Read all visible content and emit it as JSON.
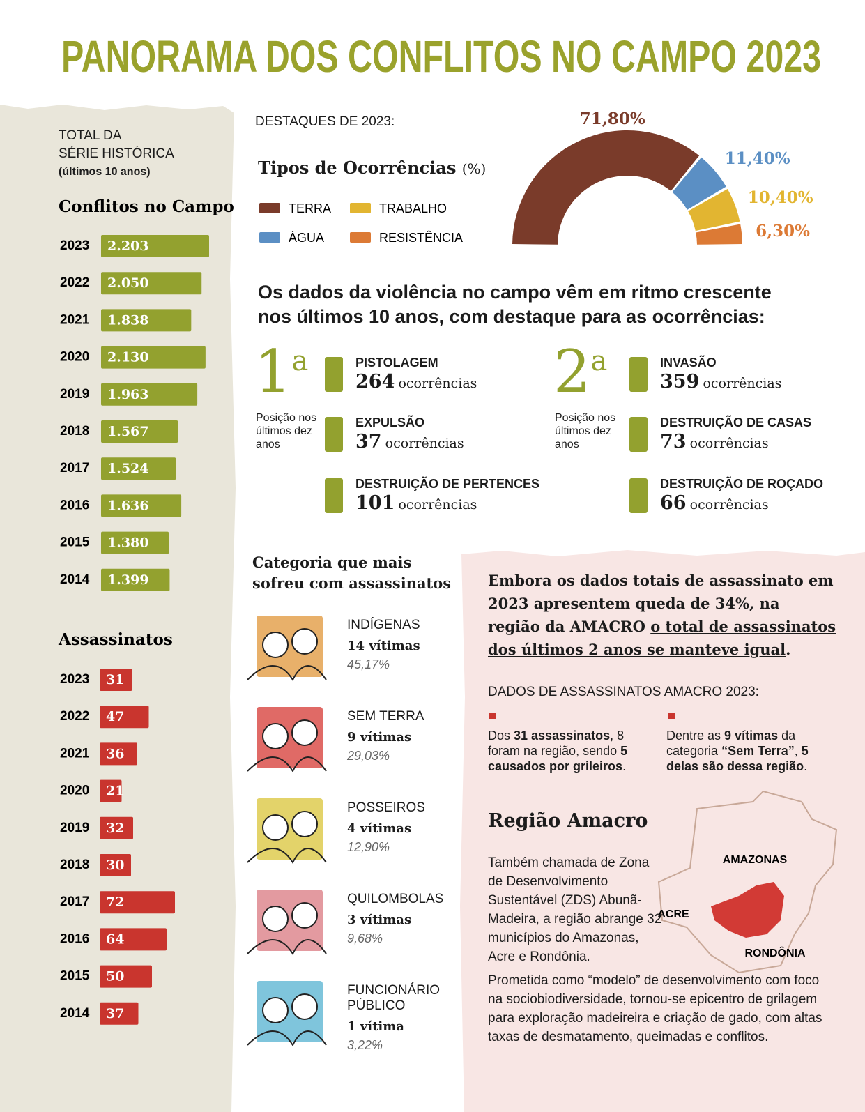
{
  "title": "PANORAMA DOS CONFLITOS NO CAMPO 2023",
  "sidebar": {
    "heading_lines": [
      "TOTAL DA",
      "SÉRIE HISTÓRICA"
    ],
    "subheading": "(últimos 10 anos)"
  },
  "chart_data": [
    {
      "type": "hbar",
      "title": "Conflitos no Campo",
      "categories": [
        "2023",
        "2022",
        "2021",
        "2020",
        "2019",
        "2018",
        "2017",
        "2016",
        "2015",
        "2014"
      ],
      "values": [
        2203,
        2050,
        1838,
        2130,
        1963,
        1567,
        1524,
        1636,
        1380,
        1399
      ],
      "value_labels": [
        "2.203",
        "2.050",
        "1.838",
        "2.130",
        "1.963",
        "1.567",
        "1.524",
        "1.636",
        "1.380",
        "1.399"
      ],
      "color": "#93a12f"
    },
    {
      "type": "hbar",
      "title": "Assassinatos",
      "categories": [
        "2023",
        "2022",
        "2021",
        "2020",
        "2019",
        "2018",
        "2017",
        "2016",
        "2015",
        "2014"
      ],
      "values": [
        31,
        47,
        36,
        21,
        32,
        30,
        72,
        64,
        50,
        37
      ],
      "color": "#c9352e"
    },
    {
      "type": "donut",
      "title": "Tipos de Ocorrências",
      "title_unit": "(%)",
      "categories": [
        "TERRA",
        "ÁGUA",
        "TRABALHO",
        "RESISTÊNCIA"
      ],
      "values": [
        71.8,
        11.4,
        10.4,
        6.3
      ],
      "value_labels": [
        "71,80%",
        "11,40%",
        "10,40%",
        "6,30%"
      ],
      "colors": [
        "#7a3b2a",
        "#5b8fc4",
        "#e2b531",
        "#dc7a35"
      ]
    }
  ],
  "highlights_label": "DESTAQUES DE 2023:",
  "intro": "Os dados da violência no campo vêm em ritmo crescente nos últimos 10 anos, com destaque para as ocorrências:",
  "rankings": [
    {
      "position": 1,
      "ordinal": "a",
      "caption": "Posição nos últimos dez anos",
      "items": [
        {
          "name": "PISTOLAGEM",
          "count": 264,
          "unit": "ocorrências"
        },
        {
          "name": "EXPULSÃO",
          "count": 37,
          "unit": "ocorrências"
        },
        {
          "name": "DESTRUIÇÃO DE PERTENCES",
          "count": 101,
          "unit": "ocorrências"
        }
      ]
    },
    {
      "position": 2,
      "ordinal": "a",
      "caption": "Posição nos últimos dez anos",
      "items": [
        {
          "name": "INVASÃO",
          "count": 359,
          "unit": "ocorrências"
        },
        {
          "name": "DESTRUIÇÃO DE CASAS",
          "count": 73,
          "unit": "ocorrências"
        },
        {
          "name": "DESTRUIÇÃO DE ROÇADO",
          "count": 66,
          "unit": "ocorrências"
        }
      ]
    }
  ],
  "victims": {
    "title": "Categoria que mais sofreu com assassinatos",
    "items": [
      {
        "name": "INDÍGENAS",
        "victims": "14 vítimas",
        "share": "45,17%"
      },
      {
        "name": "SEM TERRA",
        "victims": "9 vítimas",
        "share": "29,03%"
      },
      {
        "name": "POSSEIROS",
        "victims": "4 vítimas",
        "share": "12,90%"
      },
      {
        "name": "QUILOMBOLAS",
        "victims": "3 vítimas",
        "share": "9,68%"
      },
      {
        "name": "FUNCIONÁRIO PÚBLICO",
        "victims": "1 vítima",
        "share": "3,22%"
      }
    ]
  },
  "amacro": {
    "statement": [
      "Embora os dados totais de assassinato em 2023 apresentem queda de 34%, na região da AMACRO ",
      "o total de assassinatos dos últimos 2 anos se manteve igual",
      "."
    ],
    "data_label": "DADOS DE ASSASSINATOS AMACRO 2023:",
    "bullets": [
      [
        "Dos ",
        "31 assassinatos",
        ", 8 foram na região, sendo ",
        "5 causados por grileiros",
        "."
      ],
      [
        "Dentre as ",
        "9 vítimas",
        " da categoria ",
        "“Sem Terra”",
        ", ",
        "5 delas são dessa região",
        "."
      ]
    ],
    "region_title": "Região Amacro",
    "region_text": "Também chamada de Zona de Desenvolvimento Sustentável (ZDS) Abunã-Madeira, a região abrange 32 municípios do Amazonas, Acre e Rondônia.",
    "region_text_2": "Prometida como “modelo” de desenvolvimento com foco na sociobiodiversidade, tornou-se epicentro de grilagem para exploração madeireira e criação de gado, com altas taxas de desmatamento, queimadas e conflitos.",
    "map_labels": [
      "AMAZONAS",
      "ACRE",
      "RONDÔNIA"
    ]
  }
}
